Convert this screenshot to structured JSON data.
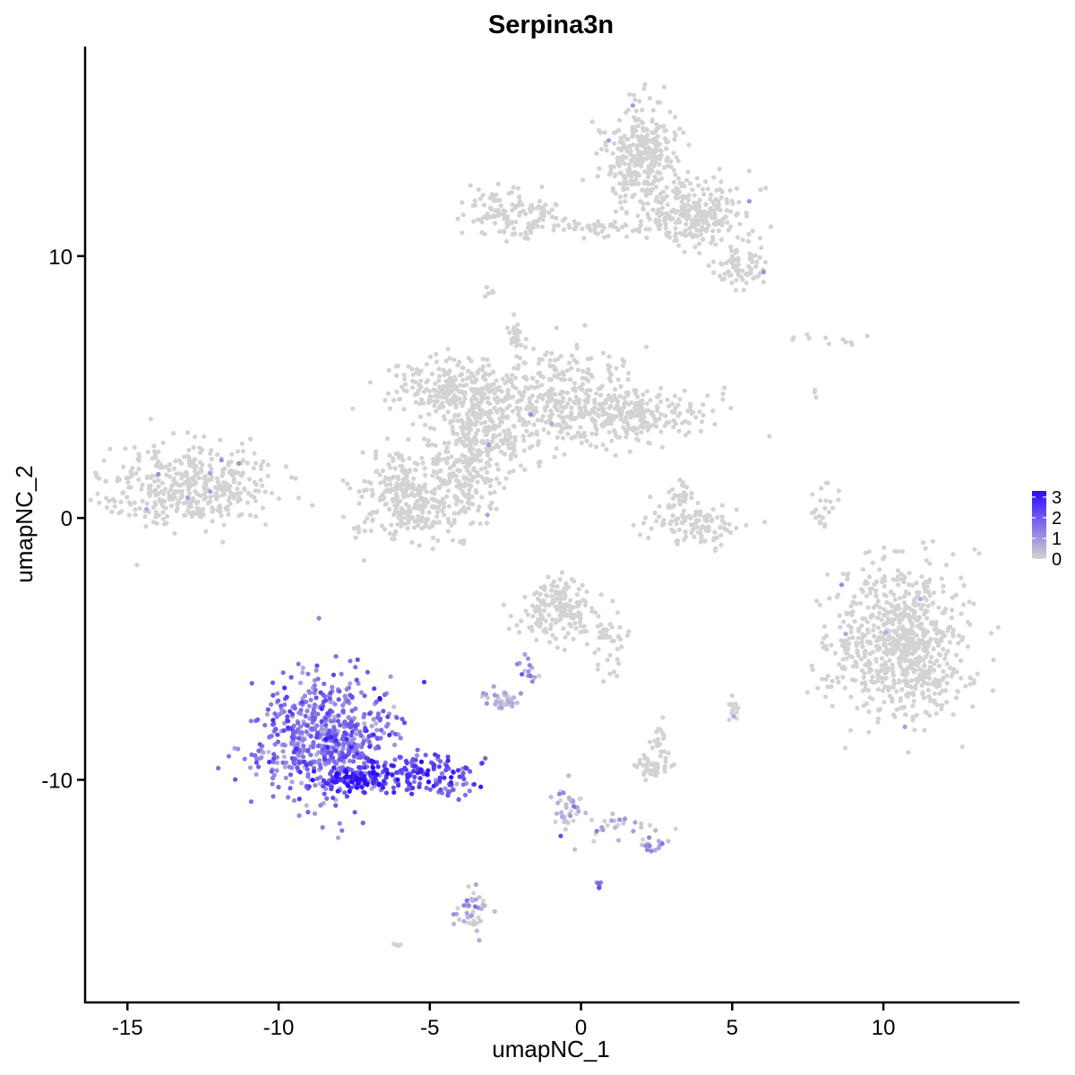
{
  "chart_data": {
    "type": "scatter",
    "title": "Serpina3n",
    "xlabel": "umapNC_1",
    "ylabel": "umapNC_2",
    "xlim": [
      -16.4,
      14.5
    ],
    "ylim": [
      -18.5,
      18.0
    ],
    "x_ticks": [
      -15,
      -10,
      -5,
      0,
      5,
      10
    ],
    "y_ticks": [
      -10,
      0,
      10
    ],
    "grid": false,
    "color_scale": {
      "label_values": [
        0,
        1,
        2,
        3
      ],
      "min": 0,
      "max": 3.3,
      "low_color": "#d3d3d3",
      "high_color": "#2a0bff",
      "legend_position": "right"
    },
    "point_groups": [
      {
        "cx": -13.0,
        "cy": 1.2,
        "sx": 1.4,
        "sy": 0.8,
        "n": 420,
        "expr": 0
      },
      {
        "cx": -8.4,
        "cy": -8.5,
        "sx": 1.1,
        "sy": 1.2,
        "n": 650,
        "expr": 1.5
      },
      {
        "cx": -7.6,
        "cy": -10.0,
        "sx": 0.6,
        "sy": 0.25,
        "n": 80,
        "expr": 2.9
      },
      {
        "cx": -5.5,
        "cy": -9.7,
        "sx": 0.9,
        "sy": 0.35,
        "n": 140,
        "expr": 2.3
      },
      {
        "cx": -4.3,
        "cy": -10.3,
        "sx": 0.35,
        "sy": 0.25,
        "n": 25,
        "expr": 1.6
      },
      {
        "cx": 2.0,
        "cy": 13.8,
        "sx": 0.6,
        "sy": 1.0,
        "n": 320,
        "expr": 0
      },
      {
        "cx": 3.8,
        "cy": 11.6,
        "sx": 0.9,
        "sy": 0.6,
        "n": 260,
        "expr": 0
      },
      {
        "cx": 5.2,
        "cy": 9.6,
        "sx": 0.4,
        "sy": 0.4,
        "n": 70,
        "expr": 0
      },
      {
        "cx": -2.2,
        "cy": 11.6,
        "sx": 0.8,
        "sy": 0.5,
        "n": 130,
        "expr": 0
      },
      {
        "cx": 0.3,
        "cy": 11.1,
        "sx": 0.8,
        "sy": 0.15,
        "n": 40,
        "expr": 0
      },
      {
        "cx": -4.2,
        "cy": 5.0,
        "sx": 1.0,
        "sy": 0.5,
        "n": 220,
        "expr": 0
      },
      {
        "cx": -3.0,
        "cy": 3.5,
        "sx": 0.9,
        "sy": 0.8,
        "n": 260,
        "expr": 0
      },
      {
        "cx": -0.5,
        "cy": 4.7,
        "sx": 1.1,
        "sy": 1.0,
        "n": 280,
        "expr": 0
      },
      {
        "cx": 1.9,
        "cy": 4.0,
        "sx": 1.2,
        "sy": 0.5,
        "n": 220,
        "expr": 0
      },
      {
        "cx": -5.6,
        "cy": 0.8,
        "sx": 0.8,
        "sy": 0.9,
        "n": 320,
        "expr": 0
      },
      {
        "cx": -3.7,
        "cy": 1.6,
        "sx": 0.5,
        "sy": 1.0,
        "n": 140,
        "expr": 0
      },
      {
        "cx": -2.2,
        "cy": 6.9,
        "sx": 0.15,
        "sy": 0.3,
        "n": 25,
        "expr": 0
      },
      {
        "cx": 3.8,
        "cy": -0.2,
        "sx": 0.8,
        "sy": 0.4,
        "n": 110,
        "expr": 0
      },
      {
        "cx": 3.3,
        "cy": 0.9,
        "sx": 0.25,
        "sy": 0.35,
        "n": 25,
        "expr": 0
      },
      {
        "cx": 10.7,
        "cy": -4.8,
        "sx": 1.0,
        "sy": 1.5,
        "n": 720,
        "expr": 0
      },
      {
        "cx": 8.4,
        "cy": -5.3,
        "sx": 0.4,
        "sy": 0.7,
        "n": 40,
        "expr": 0
      },
      {
        "cx": 8.0,
        "cy": 0.5,
        "sx": 0.2,
        "sy": 0.5,
        "n": 22,
        "expr": 0
      },
      {
        "cx": -0.8,
        "cy": -3.5,
        "sx": 0.6,
        "sy": 0.6,
        "n": 170,
        "expr": 0
      },
      {
        "cx": 0.9,
        "cy": -4.6,
        "sx": 0.3,
        "sy": 0.7,
        "n": 40,
        "expr": 0
      },
      {
        "cx": -1.8,
        "cy": -5.9,
        "sx": 0.15,
        "sy": 0.4,
        "n": 14,
        "expr": 1.0
      },
      {
        "cx": -2.6,
        "cy": -6.9,
        "sx": 0.3,
        "sy": 0.2,
        "n": 40,
        "expr": 0.3
      },
      {
        "cx": 2.4,
        "cy": -9.5,
        "sx": 0.3,
        "sy": 0.2,
        "n": 55,
        "expr": 0
      },
      {
        "cx": 2.6,
        "cy": -8.6,
        "sx": 0.15,
        "sy": 0.3,
        "n": 18,
        "expr": 0
      },
      {
        "cx": 5.0,
        "cy": -7.3,
        "sx": 0.1,
        "sy": 0.2,
        "n": 14,
        "expr": 0
      },
      {
        "cx": -0.5,
        "cy": -11.1,
        "sx": 0.3,
        "sy": 0.6,
        "n": 40,
        "expr": 0.2
      },
      {
        "cx": 1.3,
        "cy": -11.8,
        "sx": 0.6,
        "sy": 0.2,
        "n": 28,
        "expr": 0.3
      },
      {
        "cx": 2.4,
        "cy": -12.5,
        "sx": 0.25,
        "sy": 0.15,
        "n": 16,
        "expr": 0.7
      },
      {
        "cx": -3.6,
        "cy": -15.0,
        "sx": 0.25,
        "sy": 0.5,
        "n": 40,
        "expr": 0.4
      },
      {
        "cx": 0.6,
        "cy": -14.0,
        "sx": 0.07,
        "sy": 0.07,
        "n": 6,
        "expr": 1.5
      },
      {
        "cx": -6.1,
        "cy": -16.3,
        "sx": 0.08,
        "sy": 0.06,
        "n": 5,
        "expr": 0
      },
      {
        "cx": -3.0,
        "cy": 8.5,
        "sx": 0.1,
        "sy": 0.15,
        "n": 6,
        "expr": 0
      },
      {
        "cx": 8.9,
        "cy": 6.7,
        "sx": 0.6,
        "sy": 0.2,
        "n": 9,
        "expr": 0
      },
      {
        "cx": 7.7,
        "cy": 4.7,
        "sx": 0.05,
        "sy": 0.1,
        "n": 3,
        "expr": 0
      },
      {
        "cx": 7.0,
        "cy": 6.9,
        "sx": 0.05,
        "sy": 0.05,
        "n": 2,
        "expr": 0
      }
    ]
  }
}
